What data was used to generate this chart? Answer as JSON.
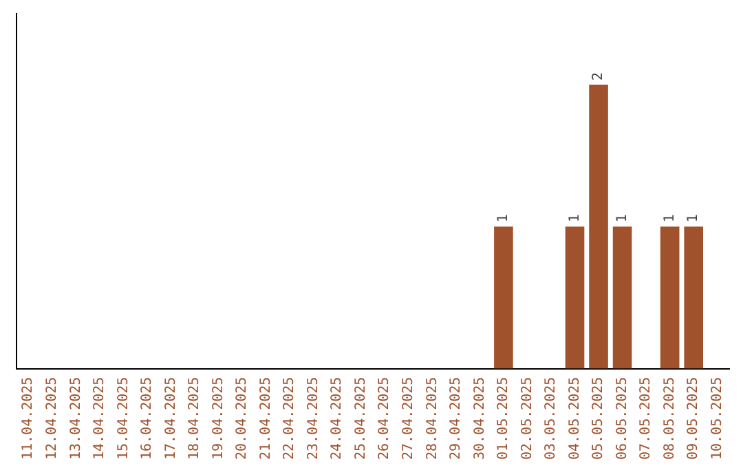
{
  "chart_data": {
    "type": "bar",
    "categories": [
      "11.04.2025",
      "12.04.2025",
      "13.04.2025",
      "14.04.2025",
      "15.04.2025",
      "16.04.2025",
      "17.04.2025",
      "18.04.2025",
      "19.04.2025",
      "20.04.2025",
      "21.04.2025",
      "22.04.2025",
      "23.04.2025",
      "24.04.2025",
      "25.04.2025",
      "26.04.2025",
      "27.04.2025",
      "28.04.2025",
      "29.04.2025",
      "30.04.2025",
      "01.05.2025",
      "02.05.2025",
      "03.05.2025",
      "04.05.2025",
      "05.05.2025",
      "06.05.2025",
      "07.05.2025",
      "08.05.2025",
      "09.05.2025",
      "10.05.2025"
    ],
    "values": [
      null,
      null,
      null,
      null,
      null,
      null,
      null,
      null,
      null,
      null,
      null,
      null,
      null,
      null,
      null,
      null,
      null,
      null,
      null,
      null,
      1,
      null,
      null,
      1,
      2,
      1,
      null,
      1,
      1,
      null
    ],
    "data_labels": true,
    "color": "#a0522d",
    "tick_labels": "x",
    "grid": false,
    "legend": false
  }
}
